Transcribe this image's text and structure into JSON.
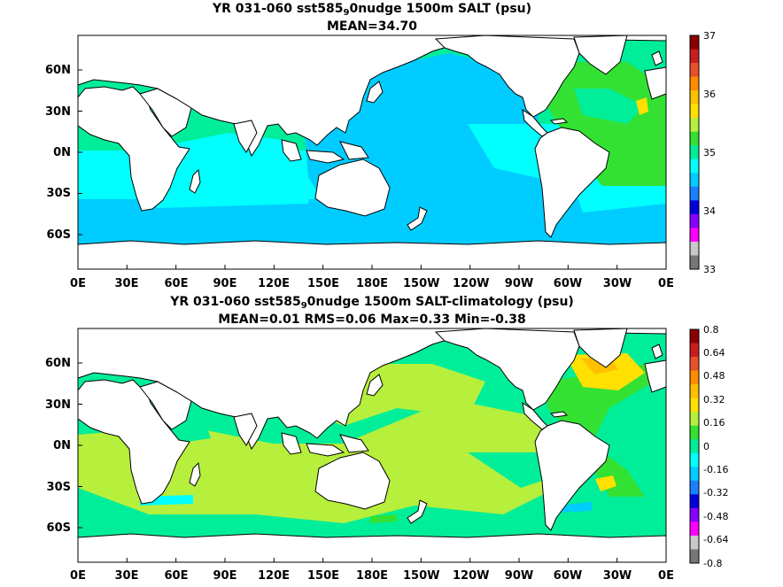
{
  "panels": [
    {
      "title_parts": [
        "YR 031-060 sst585",
        "9",
        "0nudge 1500m SALT (psu)"
      ],
      "subtitle": "MEAN=34.70",
      "lat_ticks": [
        "60N",
        "30N",
        "0N",
        "30S",
        "60S"
      ],
      "lon_ticks": [
        "0E",
        "30E",
        "60E",
        "90E",
        "120E",
        "150E",
        "180E",
        "150W",
        "120W",
        "90W",
        "60W",
        "30W",
        "0E"
      ],
      "colorbar": {
        "labels": [
          "37",
          "36",
          "35",
          "34",
          "33"
        ],
        "colors": [
          "#8b0000",
          "#c81e1e",
          "#e8502a",
          "#ff8c00",
          "#ffc000",
          "#ffe000",
          "#b6ef3c",
          "#33e133",
          "#00ee99",
          "#00ffff",
          "#00ccff",
          "#1a80ff",
          "#0000dd",
          "#8800ff",
          "#ff00ff",
          "#c8c8c8",
          "#777777"
        ]
      }
    },
    {
      "title_parts": [
        "YR 031-060 sst585",
        "9",
        "0nudge 1500m SALT-climatology (psu)"
      ],
      "subtitle": "MEAN=0.01   RMS=0.06   Max=0.33   Min=-0.38",
      "lat_ticks": [
        "60N",
        "30N",
        "0N",
        "30S",
        "60S"
      ],
      "lon_ticks": [
        "0E",
        "30E",
        "60E",
        "90E",
        "120E",
        "150E",
        "180E",
        "150W",
        "120W",
        "90W",
        "60W",
        "30W",
        "0E"
      ],
      "colorbar": {
        "labels": [
          "0.8",
          "0.64",
          "0.48",
          "0.32",
          "0.16",
          "0",
          "-0.16",
          "-0.32",
          "-0.48",
          "-0.64",
          "-0.8"
        ],
        "colors": [
          "#8b0000",
          "#c81e1e",
          "#e8502a",
          "#ff8c00",
          "#ffc000",
          "#ffe000",
          "#b6ef3c",
          "#33e133",
          "#00ee99",
          "#00ffff",
          "#00ccff",
          "#1a80ff",
          "#0000dd",
          "#8800ff",
          "#ff00ff",
          "#c8c8c8",
          "#777777"
        ]
      }
    }
  ]
}
